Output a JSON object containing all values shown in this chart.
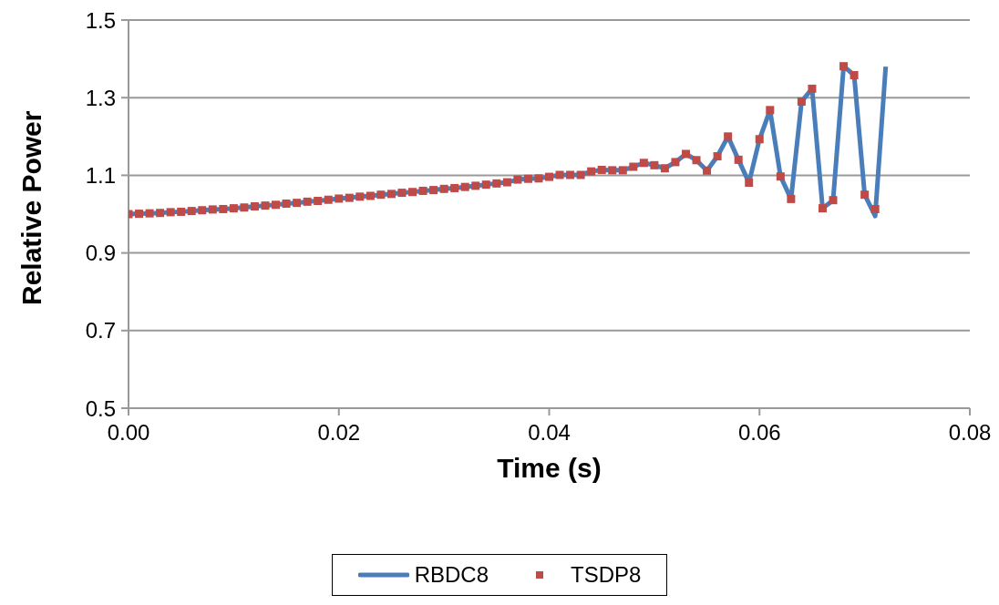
{
  "chart_data": {
    "type": "line",
    "xlabel": "Time (s)",
    "ylabel": "Relative Power",
    "x": [
      0,
      0.001,
      0.002,
      0.003,
      0.004,
      0.005,
      0.006,
      0.007,
      0.008,
      0.009,
      0.01,
      0.011,
      0.012,
      0.013,
      0.014,
      0.015,
      0.016,
      0.017,
      0.018,
      0.019,
      0.02,
      0.021,
      0.022,
      0.023,
      0.024,
      0.025,
      0.026,
      0.027,
      0.028,
      0.029,
      0.03,
      0.031,
      0.032,
      0.033,
      0.034,
      0.035,
      0.036,
      0.037,
      0.038,
      0.039,
      0.04,
      0.041,
      0.042,
      0.043,
      0.044,
      0.045,
      0.046,
      0.047,
      0.048,
      0.049,
      0.05,
      0.051,
      0.052,
      0.053,
      0.054,
      0.055,
      0.056,
      0.057,
      0.058,
      0.059,
      0.06,
      0.061,
      0.062,
      0.063,
      0.064,
      0.065,
      0.066,
      0.067,
      0.068,
      0.069,
      0.07,
      0.071,
      0.072
    ],
    "series": [
      {
        "name": "RBDC8",
        "marker": "none",
        "color": "#4a7ebb",
        "values": [
          1.0,
          1.001,
          1.002,
          1.003,
          1.005,
          1.006,
          1.008,
          1.01,
          1.012,
          1.013,
          1.015,
          1.017,
          1.02,
          1.022,
          1.024,
          1.027,
          1.029,
          1.032,
          1.034,
          1.037,
          1.04,
          1.042,
          1.045,
          1.047,
          1.05,
          1.052,
          1.055,
          1.057,
          1.06,
          1.062,
          1.065,
          1.067,
          1.07,
          1.073,
          1.076,
          1.079,
          1.082,
          1.089,
          1.091,
          1.092,
          1.096,
          1.101,
          1.101,
          1.101,
          1.11,
          1.114,
          1.113,
          1.113,
          1.122,
          1.132,
          1.126,
          1.118,
          1.134,
          1.155,
          1.139,
          1.112,
          1.149,
          1.2,
          1.14,
          1.081,
          1.193,
          1.268,
          1.097,
          1.039,
          1.29,
          1.323,
          1.015,
          1.036,
          1.381,
          1.358,
          1.05,
          0.995,
          1.38
        ]
      },
      {
        "name": "TSDP8",
        "type": "scatter",
        "marker": "square",
        "color": "#be4b48",
        "values": [
          1.0,
          1.001,
          1.002,
          1.003,
          1.005,
          1.006,
          1.008,
          1.01,
          1.012,
          1.013,
          1.015,
          1.017,
          1.02,
          1.022,
          1.024,
          1.027,
          1.029,
          1.032,
          1.034,
          1.037,
          1.04,
          1.042,
          1.045,
          1.047,
          1.05,
          1.052,
          1.055,
          1.057,
          1.06,
          1.062,
          1.065,
          1.067,
          1.07,
          1.073,
          1.076,
          1.079,
          1.082,
          1.089,
          1.091,
          1.092,
          1.096,
          1.101,
          1.101,
          1.101,
          1.11,
          1.114,
          1.113,
          1.113,
          1.122,
          1.132,
          1.126,
          1.118,
          1.134,
          1.155,
          1.139,
          1.112,
          1.149,
          1.2,
          1.14,
          1.081,
          1.193,
          1.268,
          1.097,
          1.039,
          1.29,
          1.323,
          1.015,
          1.036,
          1.381,
          1.358,
          1.05,
          1.013,
          null
        ]
      }
    ],
    "xlim": [
      0,
      0.08
    ],
    "xticks": [
      {
        "value": 0,
        "label": "0.00"
      },
      {
        "value": 0.02,
        "label": "0.02"
      },
      {
        "value": 0.04,
        "label": "0.04"
      },
      {
        "value": 0.06,
        "label": "0.06"
      },
      {
        "value": 0.08,
        "label": "0.08"
      }
    ],
    "ylim": [
      0.5,
      1.5
    ],
    "yticks": [
      0.5,
      0.7,
      0.9,
      1.1,
      1.3,
      1.5
    ],
    "grid": "y",
    "legend": "bottom",
    "line_style": "solid"
  }
}
